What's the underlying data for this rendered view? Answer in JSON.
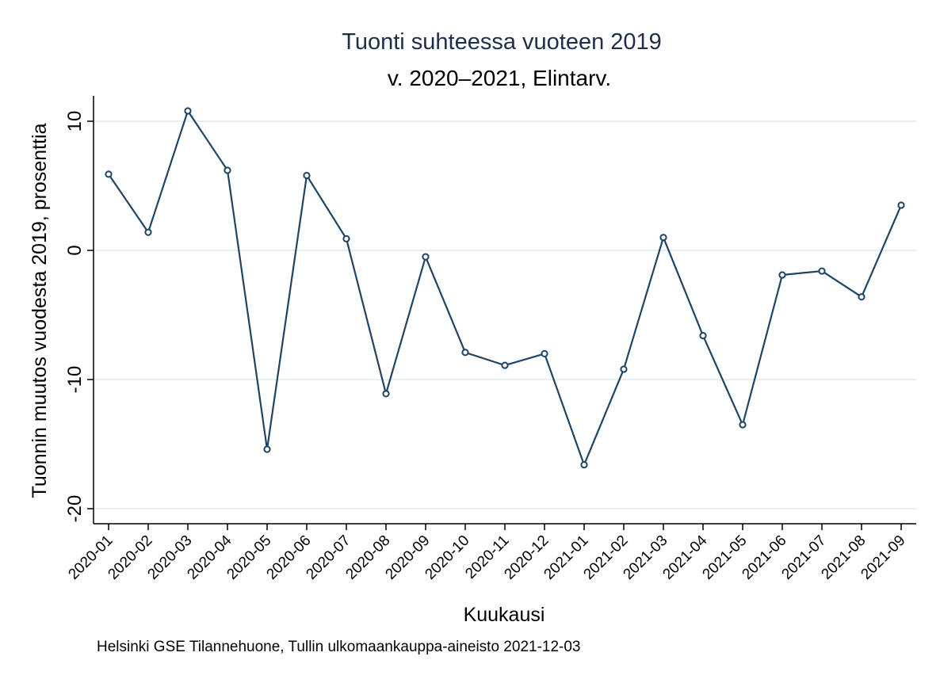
{
  "chart_data": {
    "type": "line",
    "title": "Tuonti suhteessa vuoteen 2019",
    "subtitle": "v. 2020–2021, Elintarv.",
    "xlabel": "Kuukausi",
    "ylabel": "Tuonnin muutos vuodesta 2019, prosenttia",
    "note": "Helsinki GSE Tilannehuone, Tullin ulkomaankauppa-aineisto 2021-12-03",
    "ylim": [
      -22,
      12
    ],
    "yticks": [
      -20,
      -10,
      0,
      10
    ],
    "grid": true,
    "colors": {
      "line": "#1f4466",
      "title": "#1f2d4d",
      "grid": "#e6eef0"
    },
    "categories": [
      "2020-01",
      "2020-02",
      "2020-03",
      "2020-04",
      "2020-05",
      "2020-06",
      "2020-07",
      "2020-08",
      "2020-09",
      "2020-10",
      "2020-11",
      "2020-12",
      "2021-01",
      "2021-02",
      "2021-03",
      "2021-04",
      "2021-05",
      "2021-06",
      "2021-07",
      "2021-08",
      "2021-09"
    ],
    "series": [
      {
        "values": [
          5.9,
          1.4,
          10.8,
          6.2,
          -15.4,
          5.8,
          0.9,
          -11.1,
          -0.5,
          -7.9,
          -8.9,
          -8.0,
          -16.6,
          -9.2,
          1.0,
          -6.6,
          -13.5,
          -1.9,
          -1.6,
          -3.6,
          3.5
        ]
      }
    ]
  }
}
